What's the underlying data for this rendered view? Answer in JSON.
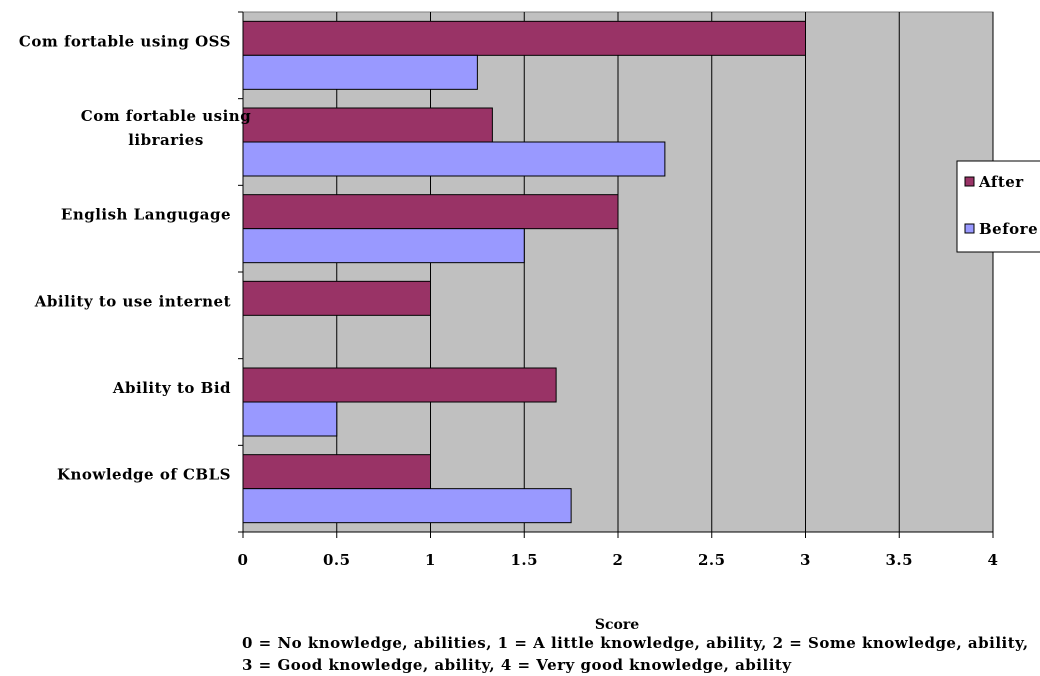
{
  "chart_data": {
    "type": "bar",
    "orientation": "horizontal",
    "categories": [
      "Comfortable using OSS",
      "Comfortable using libraries",
      "English Langugage",
      "Ability to use internet",
      "Ability to Bid",
      "Knowledge of CBLS"
    ],
    "category_label_lines": [
      [
        "Com fortable using OSS"
      ],
      [
        "Com fortable using",
        "libraries"
      ],
      [
        "English Langugage"
      ],
      [
        "Ability to use internet"
      ],
      [
        "Ability to Bid"
      ],
      [
        "Knowledge of CBLS"
      ]
    ],
    "series": [
      {
        "name": "After",
        "color": "#993366",
        "values": [
          3.0,
          1.33,
          2.0,
          1.0,
          1.67,
          1.0
        ]
      },
      {
        "name": "Before",
        "color": "#9999ff",
        "values": [
          1.25,
          2.25,
          1.5,
          0,
          0.5,
          1.75
        ]
      }
    ],
    "legend_order": [
      "After",
      "Before"
    ],
    "legend_labels": [
      "After",
      "Before"
    ],
    "xlim": [
      0,
      4
    ],
    "xticks": [
      0,
      0.5,
      1,
      1.5,
      2,
      2.5,
      3,
      3.5,
      4
    ],
    "xtick_labels": [
      "0",
      "0.5",
      "1",
      "1.5",
      "2",
      "2.5",
      "3",
      "3.5",
      "4"
    ],
    "xlabel": "Score",
    "xlabel_note": "0 = No knowledge, abilities, 1 = A little knowledge, ability, 2 = Some knowledge, ability, 3 = Good knowledge, ability, 4 = Very good knowledge, ability",
    "grid": "vertical",
    "plot_background": "#c0c0c0",
    "legend_position": "right"
  }
}
